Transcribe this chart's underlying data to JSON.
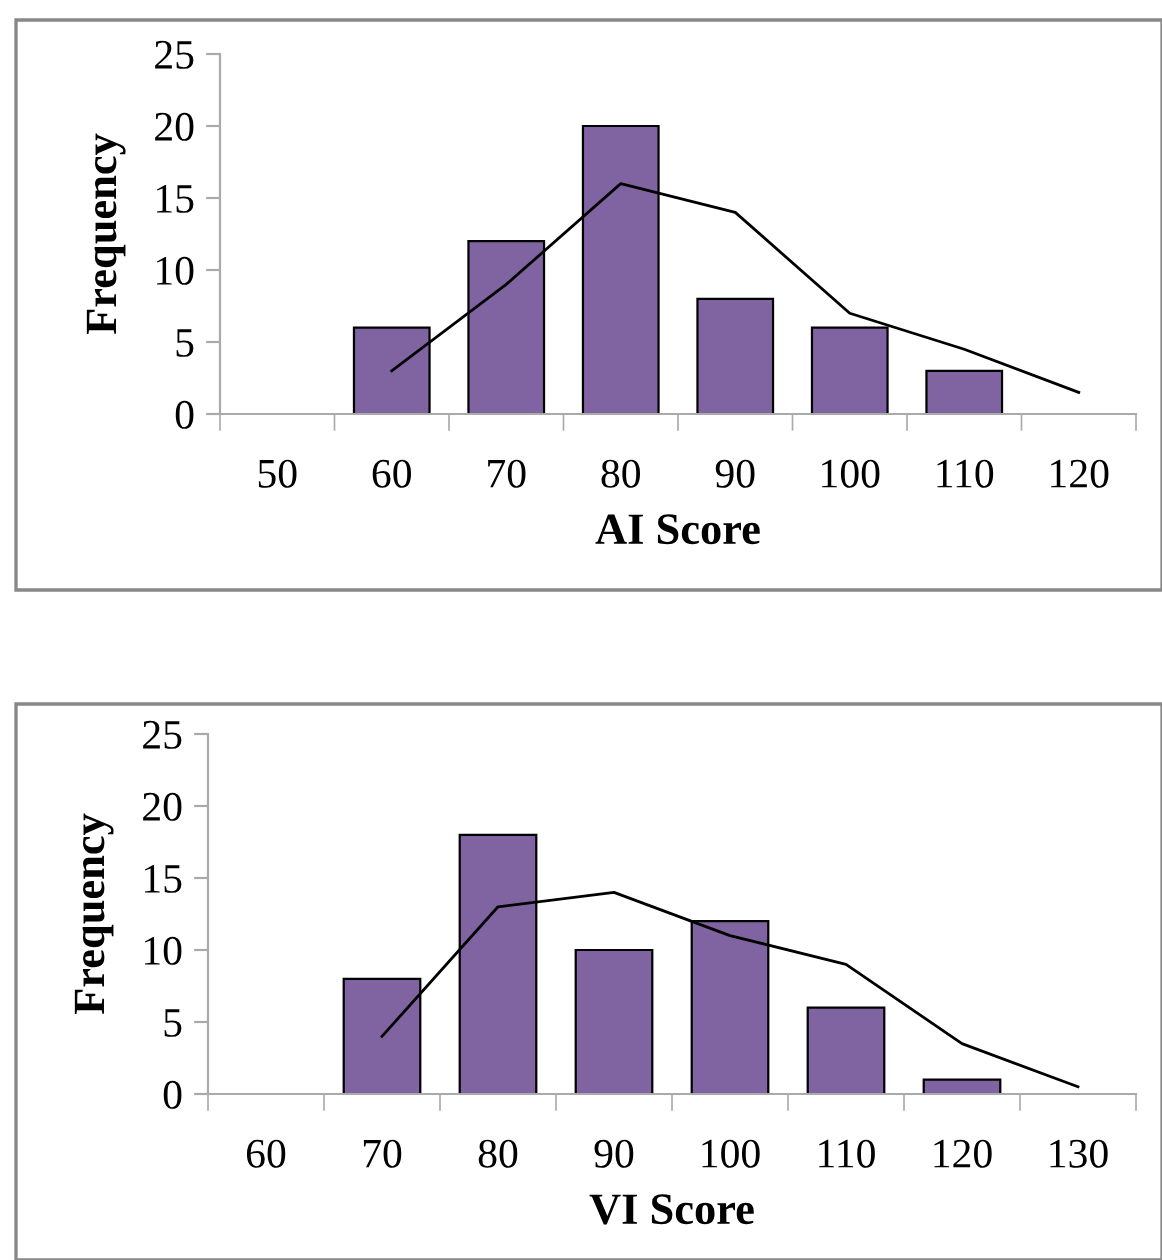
{
  "chart_data": [
    {
      "type": "bar",
      "xlabel": "AI Score",
      "ylabel": "Frequency",
      "categories": [
        "50",
        "60",
        "70",
        "80",
        "90",
        "100",
        "110",
        "120"
      ],
      "ylim": [
        0,
        25
      ],
      "yticks": [
        0,
        5,
        10,
        15,
        20,
        25
      ],
      "grid": false,
      "legend": false,
      "series": [
        {
          "color": "#8064a2",
          "values": [
            0,
            6,
            12,
            20,
            8,
            6,
            3,
            0
          ]
        },
        {
          "type": "line",
          "color": "#000000",
          "values": [
            null,
            3,
            9,
            16,
            14,
            7,
            4.5,
            1.5
          ]
        }
      ]
    },
    {
      "type": "bar",
      "xlabel": "VI Score",
      "ylabel": "Frequency",
      "categories": [
        "60",
        "70",
        "80",
        "90",
        "100",
        "110",
        "120",
        "130"
      ],
      "ylim": [
        0,
        25
      ],
      "yticks": [
        0,
        5,
        10,
        15,
        20,
        25
      ],
      "grid": false,
      "legend": false,
      "series": [
        {
          "color": "#8064a2",
          "values": [
            0,
            8,
            18,
            10,
            12,
            6,
            1,
            0
          ]
        },
        {
          "type": "line",
          "color": "#000000",
          "values": [
            null,
            4,
            13,
            14,
            11,
            9,
            3.5,
            0.5
          ]
        }
      ]
    }
  ]
}
